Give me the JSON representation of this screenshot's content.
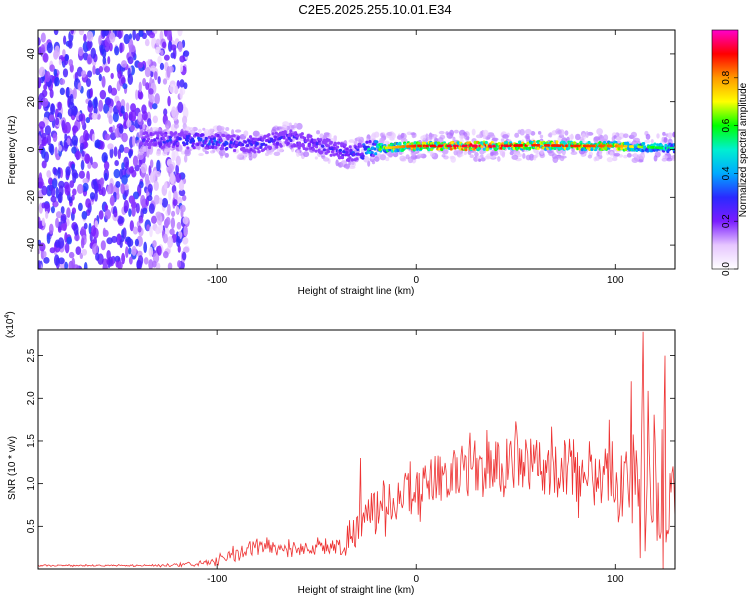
{
  "title": "C2E5.2025.255.10.01.E34",
  "chart_data": [
    {
      "type": "heatmap",
      "name": "spectrogram",
      "xlabel": "Height of straight line (km)",
      "ylabel": "Frequency (Hz)",
      "xlim": [
        -190,
        130
      ],
      "ylim": [
        -50,
        50
      ],
      "xticks": [
        -100,
        0,
        100
      ],
      "yticks": [
        -40,
        -20,
        0,
        20,
        40
      ],
      "colorbar": {
        "label": "Normalized spectral amplitude",
        "range": [
          0,
          1
        ],
        "ticks": [
          "0.0",
          "0.2",
          "0.4",
          "0.6",
          "0.8"
        ],
        "tick_values": [
          0,
          0.2,
          0.4,
          0.6,
          0.8
        ],
        "colors": [
          "#ffffff",
          "#e6c6ff",
          "#7a1dff",
          "#2a2aff",
          "#00aaff",
          "#00f0d0",
          "#00ff00",
          "#ffff00",
          "#ff9900",
          "#ff0000",
          "#ff00cc"
        ]
      },
      "ridge_frequency_hz": {
        "x": [
          -135,
          -120,
          -100,
          -80,
          -65,
          -50,
          -40,
          -33,
          -25,
          -10,
          0,
          20,
          40,
          60,
          80,
          100,
          115,
          130
        ],
        "y": [
          4,
          4,
          3,
          2,
          5,
          2,
          0,
          -2,
          0,
          1,
          1.5,
          1.5,
          1.5,
          1.8,
          1.5,
          1.5,
          1.0,
          0.5
        ]
      },
      "ridge_amplitude": {
        "x": [
          -135,
          -120,
          -100,
          -80,
          -60,
          -40,
          -30,
          -20,
          -10,
          0,
          20,
          40,
          60,
          80,
          100,
          115,
          130
        ],
        "y": [
          0.3,
          0.35,
          0.35,
          0.3,
          0.3,
          0.28,
          0.35,
          0.6,
          0.7,
          0.8,
          0.85,
          0.85,
          0.8,
          0.8,
          0.75,
          0.55,
          0.45
        ]
      },
      "noise_region_x": [
        -190,
        -115
      ]
    },
    {
      "type": "line",
      "name": "snr",
      "xlabel": "Height of straight line (km)",
      "ylabel": "SNR (10 * v/v)",
      "yscale_label": "(x10",
      "yscale_exponent": "4",
      "xlim": [
        -190,
        130
      ],
      "ylim": [
        0,
        2.8
      ],
      "xticks": [
        -100,
        0,
        100
      ],
      "yticks": [
        "0.5",
        "1.0",
        "1.5",
        "2.0",
        "2.5"
      ],
      "ytick_values": [
        0.5,
        1.0,
        1.5,
        2.0,
        2.5
      ],
      "color": "#ee3333",
      "envelope": {
        "x": [
          -190,
          -140,
          -120,
          -110,
          -100,
          -90,
          -80,
          -70,
          -60,
          -50,
          -40,
          -35,
          -30,
          -25,
          -20,
          -10,
          0,
          10,
          20,
          30,
          40,
          50,
          60,
          70,
          80,
          90,
          100,
          110,
          115,
          120,
          125,
          130
        ],
        "mean": [
          0.04,
          0.04,
          0.04,
          0.06,
          0.09,
          0.17,
          0.26,
          0.25,
          0.24,
          0.25,
          0.26,
          0.35,
          0.5,
          0.62,
          0.68,
          0.82,
          0.95,
          1.05,
          1.15,
          1.2,
          1.22,
          1.22,
          1.2,
          1.2,
          1.18,
          1.15,
          1.12,
          1.05,
          0.95,
          0.9,
          0.85,
          0.85
        ],
        "amplitude": [
          0.01,
          0.01,
          0.02,
          0.03,
          0.06,
          0.1,
          0.12,
          0.1,
          0.1,
          0.1,
          0.12,
          0.25,
          0.3,
          0.25,
          0.3,
          0.3,
          0.35,
          0.35,
          0.35,
          0.35,
          0.4,
          0.4,
          0.42,
          0.45,
          0.45,
          0.45,
          0.55,
          0.7,
          0.95,
          0.9,
          0.8,
          0.7
        ]
      },
      "peaks": [
        {
          "x": -28,
          "y": 1.3
        },
        {
          "x": 114,
          "y": 2.78
        },
        {
          "x": 108,
          "y": 2.2
        },
        {
          "x": 125,
          "y": 2.5
        }
      ]
    }
  ]
}
